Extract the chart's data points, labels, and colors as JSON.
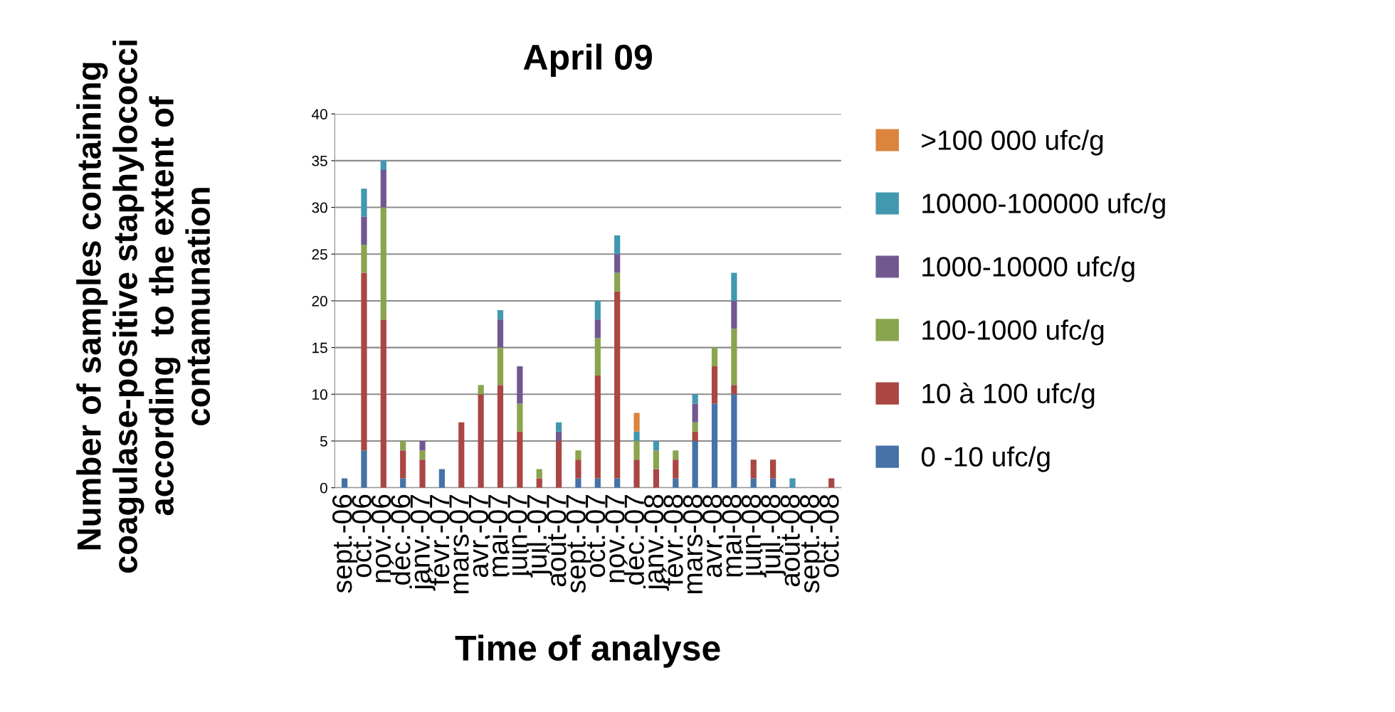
{
  "chart_data": {
    "type": "bar",
    "title": "April 09",
    "xlabel": "Time of analyse",
    "ylabel": "Number of samples containing coagulase-positive staphylococci according  to the extent of contamunation",
    "categories": [
      "sept.-06",
      "oct.-06",
      "nov.-06",
      "déc.-06",
      "janv.-07",
      "févr.-07",
      "mars-07",
      "avr.-07",
      "mai-07",
      "juin-07",
      "juil.-07",
      "août-07",
      "sept.-07",
      "oct.-07",
      "nov.-07",
      "déc.-07",
      "janv.-08",
      "févr.-08",
      "mars-08",
      "avr.-08",
      "mai-08",
      "juin-08",
      "juil.-08",
      "août-08",
      "sept.-08",
      "oct.-08"
    ],
    "stacked": true,
    "ylim": [
      0,
      40
    ],
    "yticks": [
      0,
      5,
      10,
      15,
      20,
      25,
      30,
      35,
      40
    ],
    "grid": "y",
    "legend": "right",
    "series": [
      {
        "name": "0 -10 ufc/g",
        "color": "#4572a7",
        "values": [
          1,
          4,
          0,
          1,
          0,
          2,
          0,
          0,
          0,
          0,
          0,
          0,
          1,
          1,
          1,
          0,
          0,
          1,
          5,
          9,
          10,
          1,
          1,
          0,
          0,
          0
        ]
      },
      {
        "name": "10 à 100 ufc/g",
        "color": "#aa4643",
        "values": [
          0,
          19,
          18,
          3,
          3,
          0,
          7,
          10,
          11,
          6,
          1,
          5,
          2,
          11,
          20,
          3,
          2,
          2,
          1,
          4,
          1,
          2,
          2,
          0,
          0,
          1
        ]
      },
      {
        "name": "100-1000 ufc/g",
        "color": "#89a54e",
        "values": [
          0,
          3,
          12,
          1,
          1,
          0,
          0,
          1,
          4,
          3,
          1,
          0,
          1,
          4,
          2,
          2,
          2,
          1,
          1,
          2,
          6,
          0,
          0,
          0,
          0,
          0
        ]
      },
      {
        "name": "1000-10000 ufc/g",
        "color": "#71588f",
        "values": [
          0,
          3,
          4,
          0,
          1,
          0,
          0,
          0,
          3,
          4,
          0,
          1,
          0,
          2,
          2,
          0,
          0,
          0,
          2,
          0,
          3,
          0,
          0,
          0,
          0,
          0
        ]
      },
      {
        "name": "10000-100000 ufc/g",
        "color": "#4198af",
        "values": [
          0,
          3,
          1,
          0,
          0,
          0,
          0,
          0,
          1,
          0,
          0,
          1,
          0,
          2,
          2,
          1,
          1,
          0,
          1,
          0,
          3,
          0,
          0,
          1,
          0,
          0
        ]
      },
      {
        "name": ">100 000 ufc/g",
        "color": "#db843d",
        "values": [
          0,
          0,
          0,
          0,
          0,
          0,
          0,
          0,
          0,
          0,
          0,
          0,
          0,
          0,
          0,
          2,
          0,
          0,
          0,
          0,
          0,
          0,
          0,
          0,
          0,
          0
        ]
      }
    ]
  }
}
